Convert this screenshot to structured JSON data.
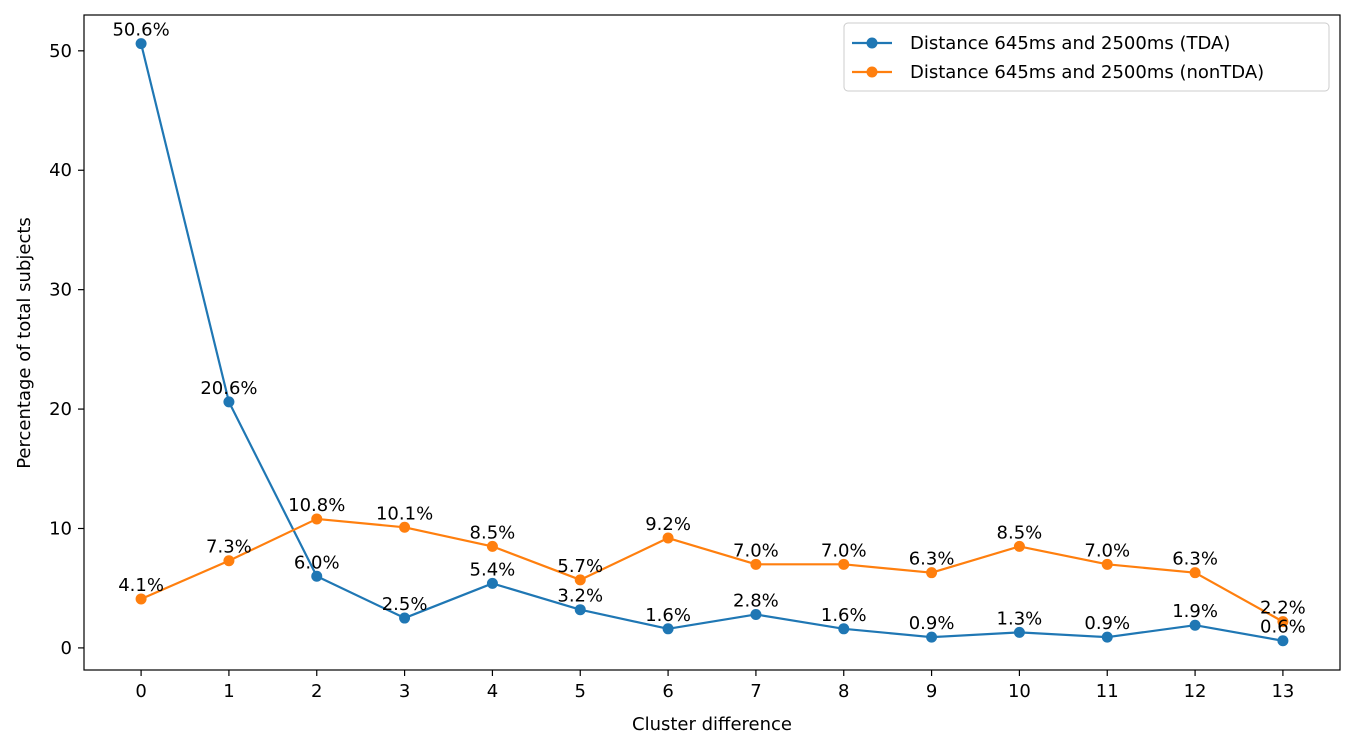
{
  "chart_data": {
    "type": "line",
    "title": "",
    "xlabel": "Cluster difference",
    "ylabel": "Percentage of total subjects",
    "x": [
      0,
      1,
      2,
      3,
      4,
      5,
      6,
      7,
      8,
      9,
      10,
      11,
      12,
      13
    ],
    "xlim": [
      -0.65,
      13.65
    ],
    "ylim": [
      -1.85,
      53.0
    ],
    "yticks": [
      0,
      10,
      20,
      30,
      40,
      50
    ],
    "grid": false,
    "legend_position": "upper right",
    "series": [
      {
        "name": "Distance 645ms and 2500ms (TDA)",
        "color": "#1f77b4",
        "values": [
          50.6,
          20.6,
          6.0,
          2.5,
          5.4,
          3.2,
          1.6,
          2.8,
          1.6,
          0.9,
          1.3,
          0.9,
          1.9,
          0.6
        ],
        "labels": [
          "50.6%",
          "20.6%",
          "6.0%",
          "2.5%",
          "5.4%",
          "3.2%",
          "1.6%",
          "2.8%",
          "1.6%",
          "0.9%",
          "1.3%",
          "0.9%",
          "1.9%",
          "0.6%"
        ]
      },
      {
        "name": "Distance 645ms and 2500ms (nonTDA)",
        "color": "#ff7f0e",
        "values": [
          4.1,
          7.3,
          10.8,
          10.1,
          8.5,
          5.7,
          9.2,
          7.0,
          7.0,
          6.3,
          8.5,
          7.0,
          6.3,
          2.2
        ],
        "labels": [
          "4.1%",
          "7.3%",
          "10.8%",
          "10.1%",
          "8.5%",
          "5.7%",
          "9.2%",
          "7.0%",
          "7.0%",
          "6.3%",
          "8.5%",
          "7.0%",
          "6.3%",
          "2.2%"
        ]
      }
    ]
  }
}
